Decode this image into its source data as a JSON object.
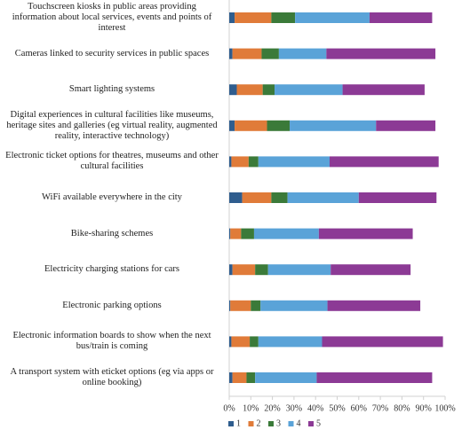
{
  "chart_data": {
    "type": "stacked-barh",
    "categories": [
      "Touchscreen kiosks in public areas providing\ninformation about local services, events and points of\ninterest",
      "Cameras linked to security services in public spaces",
      "Smart lighting systems",
      "Digital experiences in cultural facilities like museums,\nheritage sites and galleries (eg virtual reality, augmented\nreality, interactive technology)",
      "Electronic ticket options for theatres, museums and other\ncultural facilities",
      "WiFi available everywhere in the city",
      "Bike-sharing schemes",
      "Electricity charging stations for cars",
      "Electronic parking options",
      "Electronic information boards to show when the next\nbus/train is coming",
      "A transport system with eticket options (eg via apps or\nonline booking)"
    ],
    "series": [
      {
        "name": "1",
        "color": "#2f5d8e",
        "values": [
          2.5,
          1.5,
          3.5,
          2.5,
          1,
          6,
          0.5,
          1.5,
          0.5,
          1,
          1.5
        ]
      },
      {
        "name": "2",
        "color": "#e07b39",
        "values": [
          17,
          13.5,
          12,
          15,
          8,
          13.5,
          5,
          10.5,
          9.5,
          8.5,
          6.5
        ]
      },
      {
        "name": "3",
        "color": "#3b7a39",
        "values": [
          11,
          8,
          5.5,
          10.5,
          4.5,
          7.5,
          6,
          6,
          4.5,
          4,
          4
        ]
      },
      {
        "name": "4",
        "color": "#5aa3d8",
        "values": [
          34.5,
          22,
          31.5,
          40,
          33,
          33,
          30,
          29,
          31,
          29.5,
          28.5
        ]
      },
      {
        "name": "5",
        "color": "#8c3a95",
        "values": [
          29,
          50.5,
          38,
          27.5,
          50.5,
          36,
          43.5,
          37,
          43,
          56,
          53.5
        ]
      }
    ],
    "xlim": [
      0,
      100
    ],
    "xticks": [
      {
        "value": 0,
        "label": "0%"
      },
      {
        "value": 10,
        "label": "10%"
      },
      {
        "value": 20,
        "label": "20%"
      },
      {
        "value": 30,
        "label": "30%"
      },
      {
        "value": 40,
        "label": "40%"
      },
      {
        "value": 50,
        "label": "50%"
      },
      {
        "value": 60,
        "label": "60%"
      },
      {
        "value": 70,
        "label": "70%"
      },
      {
        "value": 80,
        "label": "80%"
      },
      {
        "value": 90,
        "label": "90%"
      },
      {
        "value": 100,
        "label": "100%"
      }
    ],
    "legend": "bottom"
  }
}
